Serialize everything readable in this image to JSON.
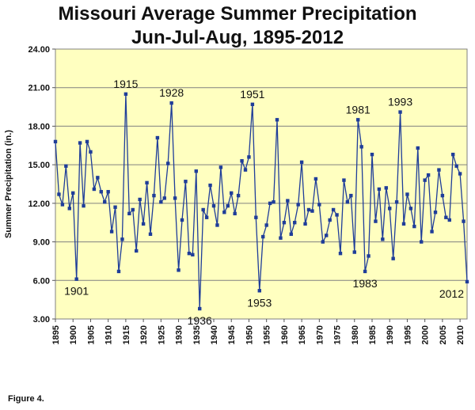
{
  "chart_data": {
    "type": "line",
    "title": "Missouri Average Summer Precipitation",
    "subtitle": "Jun-Jul-Aug, 1895-2012",
    "ylabel": "Summer Precipitation  (in.)",
    "xlabel": "",
    "ylim": [
      3,
      24
    ],
    "yticks": [
      "3.00",
      "6.00",
      "9.00",
      "12.00",
      "15.00",
      "18.00",
      "21.00",
      "24.00"
    ],
    "xticks": [
      "1895",
      "1900",
      "1905",
      "1910",
      "1915",
      "1920",
      "1925",
      "1930",
      "1935",
      "1940",
      "1945",
      "1950",
      "1955",
      "1960",
      "1965",
      "1970",
      "1975",
      "1980",
      "1985",
      "1990",
      "1995",
      "2000",
      "2005",
      "2010"
    ],
    "grid": "horizontal",
    "plot_background": "#ffffc0",
    "series_color": "#1f3d99",
    "x": [
      1895,
      1896,
      1897,
      1898,
      1899,
      1900,
      1901,
      1902,
      1903,
      1904,
      1905,
      1906,
      1907,
      1908,
      1909,
      1910,
      1911,
      1912,
      1913,
      1914,
      1915,
      1916,
      1917,
      1918,
      1919,
      1920,
      1921,
      1922,
      1923,
      1924,
      1925,
      1926,
      1927,
      1928,
      1929,
      1930,
      1931,
      1932,
      1933,
      1934,
      1935,
      1936,
      1937,
      1938,
      1939,
      1940,
      1941,
      1942,
      1943,
      1944,
      1945,
      1946,
      1947,
      1948,
      1949,
      1950,
      1951,
      1952,
      1953,
      1954,
      1955,
      1956,
      1957,
      1958,
      1959,
      1960,
      1961,
      1962,
      1963,
      1964,
      1965,
      1966,
      1967,
      1968,
      1969,
      1970,
      1971,
      1972,
      1973,
      1974,
      1975,
      1976,
      1977,
      1978,
      1979,
      1980,
      1981,
      1982,
      1983,
      1984,
      1985,
      1986,
      1987,
      1988,
      1989,
      1990,
      1991,
      1992,
      1993,
      1994,
      1995,
      1996,
      1997,
      1998,
      1999,
      2000,
      2001,
      2002,
      2003,
      2004,
      2005,
      2006,
      2007,
      2008,
      2009,
      2010,
      2011,
      2012
    ],
    "values": [
      16.8,
      12.7,
      11.9,
      14.9,
      11.6,
      12.8,
      6.1,
      16.7,
      11.8,
      16.8,
      16.0,
      13.1,
      14.0,
      12.9,
      12.1,
      12.9,
      9.8,
      11.7,
      6.7,
      9.2,
      20.5,
      11.2,
      11.5,
      8.3,
      12.3,
      10.4,
      13.6,
      9.6,
      12.6,
      17.1,
      12.1,
      12.4,
      15.1,
      19.8,
      12.4,
      6.8,
      10.7,
      13.7,
      8.1,
      8.0,
      14.5,
      3.8,
      11.5,
      10.9,
      13.4,
      11.8,
      10.3,
      14.8,
      11.3,
      11.8,
      12.8,
      11.2,
      12.6,
      15.3,
      14.6,
      15.6,
      19.7,
      10.9,
      5.2,
      9.4,
      10.3,
      12.0,
      12.1,
      18.5,
      9.3,
      10.5,
      12.2,
      9.6,
      10.5,
      11.9,
      15.2,
      10.4,
      11.5,
      11.4,
      13.9,
      11.9,
      9.0,
      9.5,
      10.7,
      11.5,
      11.1,
      8.1,
      13.8,
      12.1,
      12.6,
      8.2,
      18.5,
      16.4,
      6.7,
      7.9,
      15.8,
      10.6,
      13.1,
      9.2,
      13.2,
      11.6,
      7.7,
      12.1,
      19.1,
      10.4,
      12.7,
      11.6,
      10.2,
      16.3,
      9.0,
      13.8,
      14.2,
      9.8,
      11.3,
      14.6,
      12.6,
      10.9,
      10.7,
      15.8,
      14.9,
      14.3,
      10.6,
      5.9
    ],
    "annotations": [
      {
        "label": "1915",
        "year": 1915,
        "value": 20.5,
        "position": "above"
      },
      {
        "label": "1928",
        "year": 1928,
        "value": 19.8,
        "position": "above"
      },
      {
        "label": "1951",
        "year": 1951,
        "value": 19.7,
        "position": "above"
      },
      {
        "label": "1981",
        "year": 1981,
        "value": 18.5,
        "position": "above"
      },
      {
        "label": "1993",
        "year": 1993,
        "value": 19.1,
        "position": "above"
      },
      {
        "label": "1901",
        "year": 1901,
        "value": 6.1,
        "position": "below"
      },
      {
        "label": "1936",
        "year": 1936,
        "value": 3.8,
        "position": "below"
      },
      {
        "label": "1953",
        "year": 1953,
        "value": 5.2,
        "position": "below"
      },
      {
        "label": "1983",
        "year": 1983,
        "value": 6.7,
        "position": "below"
      },
      {
        "label": "2012",
        "year": 2012,
        "value": 5.9,
        "position": "below-left"
      }
    ]
  },
  "caption": "Figure 4."
}
